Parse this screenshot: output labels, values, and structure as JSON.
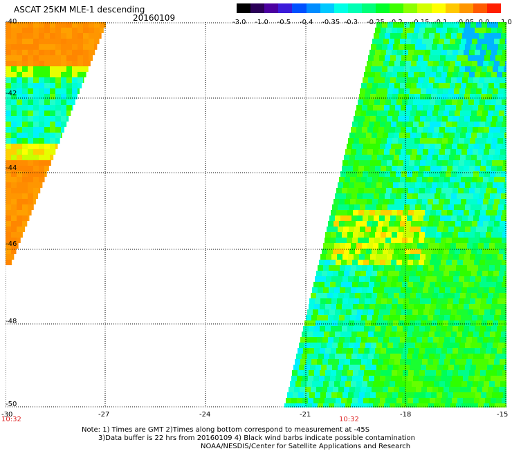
{
  "header": {
    "title": "ASCAT 25KM MLE-1 descending",
    "date": "20160109"
  },
  "colorbar": {
    "labels": [
      "-3.0",
      "-1.0",
      "-0.5",
      "-0.4",
      "-0.35",
      "-0.3",
      "-0.25",
      "-0.2",
      "-0.15",
      "-0.1",
      "-0.05",
      "0.0",
      "1.0"
    ],
    "colors": [
      "#000000",
      "#2a0057",
      "#4b00a0",
      "#3a1bd9",
      "#0050ff",
      "#008cff",
      "#00c8ff",
      "#00ffe6",
      "#00ffb4",
      "#00ff7a",
      "#00ff28",
      "#3cff00",
      "#8cff00",
      "#d2ff00",
      "#ffff00",
      "#ffc800",
      "#ff9600",
      "#ff5a00",
      "#ff1e00"
    ]
  },
  "map": {
    "y_axis_labels": [
      "-40",
      "-42",
      "-44",
      "-46",
      "-48",
      "-50"
    ],
    "x_axis_labels": [
      "-30",
      "-27",
      "-24",
      "-21",
      "-18",
      "-15"
    ],
    "time_labels": [
      "10:32",
      "10:32"
    ]
  },
  "footer": {
    "note_line1": "Note: 1) Times are GMT 2)Times along bottom correspond to measurement at -45S",
    "note_line2": "3)Data buffer is 22 hrs from 20160109 4) Black wind barbs indicate possible contamination",
    "credit": "NOAA/NESDIS/Center for Satellite Applications and Research"
  }
}
